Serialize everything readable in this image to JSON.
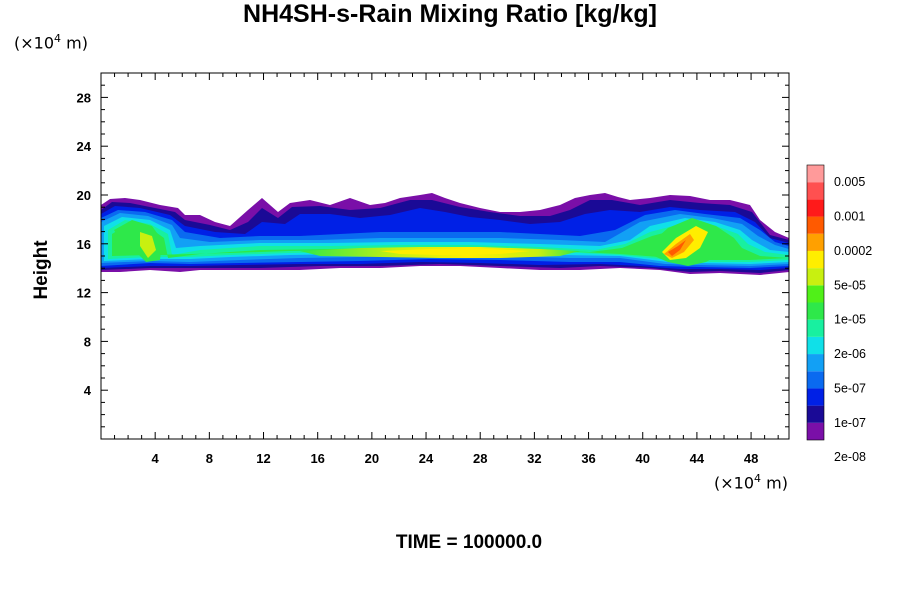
{
  "chart_data": {
    "type": "heatmap",
    "title": "NH4SH-s-Rain Mixing Ratio [kg/kg]",
    "ylabel": "Height",
    "xlabel": "",
    "x_unit_prefix": "(×10",
    "x_unit_exp": "4",
    "x_unit_suffix": " m)",
    "y_unit_prefix": "(×10",
    "y_unit_exp": "4",
    "y_unit_suffix": " m)",
    "xlim": [
      0,
      50.8
    ],
    "ylim": [
      0,
      30
    ],
    "x_ticks": [
      4,
      8,
      12,
      16,
      20,
      24,
      28,
      32,
      36,
      40,
      44,
      48
    ],
    "x_tick_labels": [
      "4",
      "8",
      "12",
      "16",
      "20",
      "24",
      "28",
      "32",
      "36",
      "40",
      "44",
      "48"
    ],
    "y_ticks": [
      4,
      8,
      12,
      16,
      20,
      24,
      28
    ],
    "y_tick_labels": [
      "4",
      "8",
      "12",
      "16",
      "20",
      "24",
      "28"
    ],
    "colorbar_labels": [
      "0.005",
      "0.001",
      "0.0002",
      "5e-05",
      "1e-05",
      "2e-06",
      "5e-07",
      "1e-07",
      "2e-08"
    ],
    "colorbar_colors": [
      "#7a0fa8",
      "#1a0a96",
      "#0020e6",
      "#0a6af0",
      "#12a0f5",
      "#10e0e8",
      "#18f0a0",
      "#2ee84a",
      "#50f018",
      "#c8f010",
      "#ffee00",
      "#ffa000",
      "#ff5a00",
      "#ff1a1a",
      "#ff5050",
      "#ff9a9a"
    ],
    "time_label": "TIME = 100000.0"
  }
}
